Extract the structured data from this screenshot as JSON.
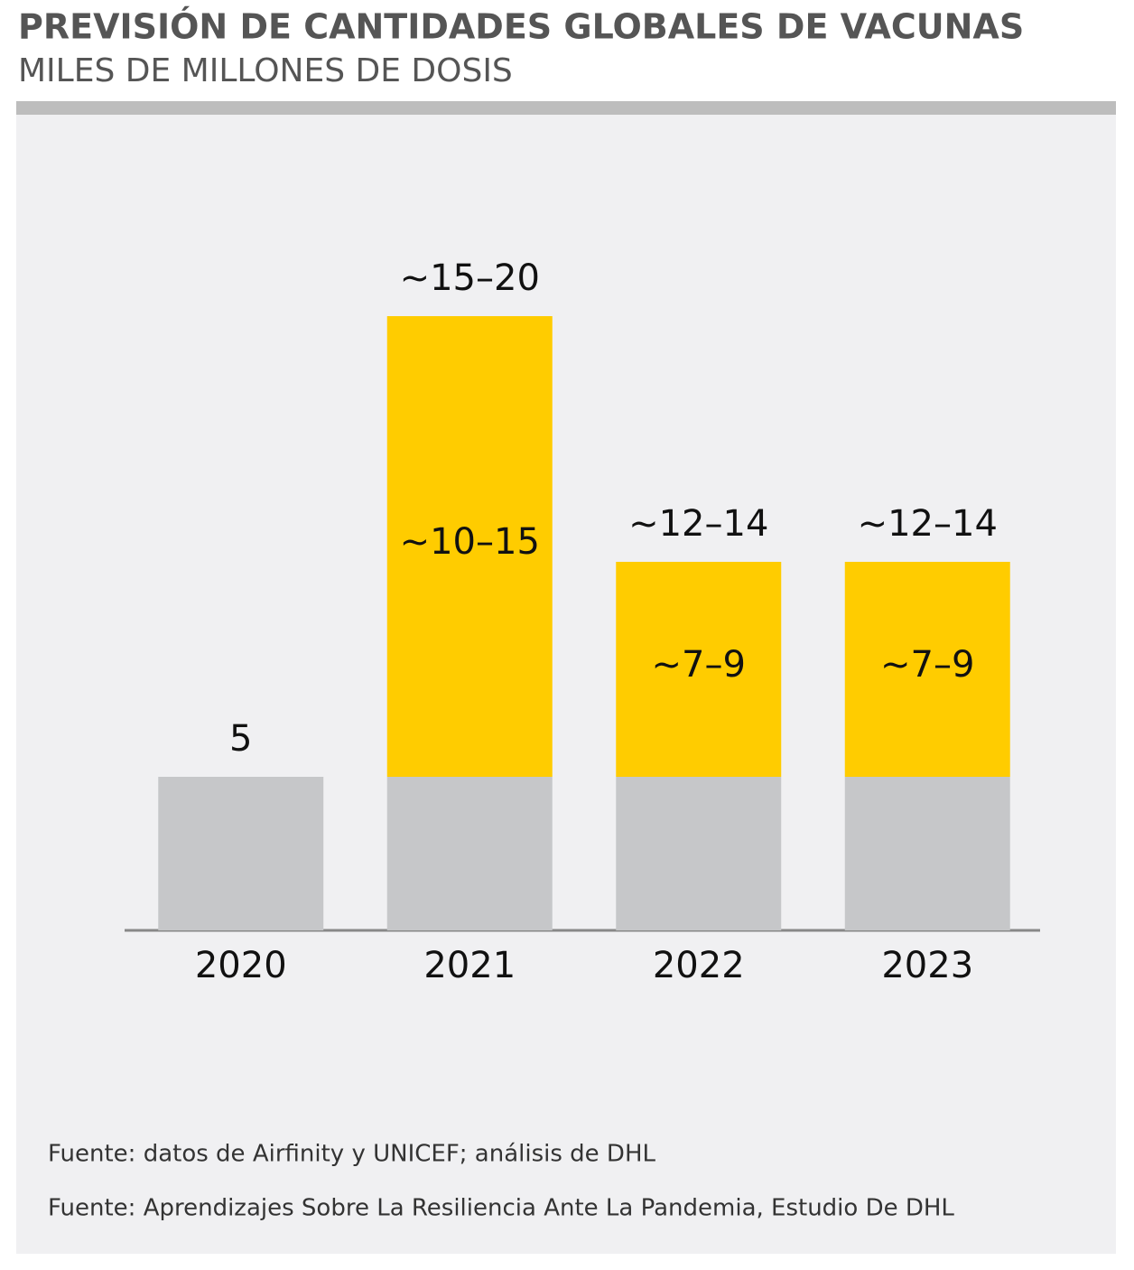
{
  "chart_data": {
    "type": "stacked-bar",
    "title": "PREVISIÓN DE CANTIDADES GLOBALES DE VACUNAS",
    "subtitle": "MILES DE MILLONES DE DOSIS",
    "categories": [
      "2020",
      "2021",
      "2022",
      "2023"
    ],
    "series": [
      {
        "color": "#c6c7c9",
        "values": [
          5,
          5,
          5,
          5
        ]
      },
      {
        "color": "#ffcc00",
        "values": [
          null,
          15,
          7,
          7
        ],
        "value_labels": [
          null,
          "~10–15",
          "~7–9",
          "~7–9"
        ]
      }
    ],
    "total_labels": [
      "5",
      "~15–20",
      "~12–14",
      "~12–14"
    ],
    "ylim": [
      0,
      26.5
    ],
    "sources": [
      "Fuente: datos de Airfinity y UNICEF; análisis de DHL",
      "Fuente: Aprendizajes Sobre La Resiliencia Ante La Pandemia, Estudio De DHL"
    ]
  }
}
